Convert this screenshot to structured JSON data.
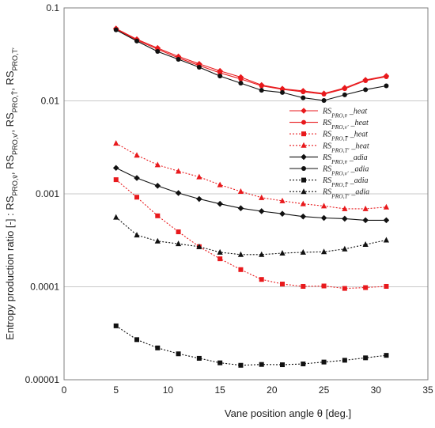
{
  "chart_data": {
    "type": "line",
    "title": "",
    "xlabel": "Vane position angle θ [deg.]",
    "ylabel": "Entropy production ratio [-] : RS_PRO,v̄, RS_PRO,v′, RS_PRO,T̄, RS_PRO,T′",
    "ylabel_parts": {
      "prefix": "Entropy production ratio [-] : ",
      "base": "RS",
      "sep": ", ",
      "subs": [
        "PRO,v̄",
        "PRO,v′",
        "PRO,T̄",
        "PRO,T′"
      ]
    },
    "xlim": [
      0,
      35
    ],
    "xticks": [
      0,
      5,
      10,
      15,
      20,
      25,
      30,
      35
    ],
    "xtick_labels": [
      "0",
      "5",
      "10",
      "15",
      "20",
      "25",
      "30",
      "35"
    ],
    "ylim": [
      1e-05,
      0.1
    ],
    "yscale": "log",
    "yticks": [
      1e-05,
      0.0001,
      0.001,
      0.01,
      0.1
    ],
    "ytick_labels": [
      "0.00001",
      "0.0001",
      "0.001",
      "0.01",
      "0.1"
    ],
    "grid": "horizontal",
    "legend_position": "right",
    "x": [
      5,
      7,
      9,
      11,
      13,
      15,
      17,
      19,
      21,
      23,
      25,
      27,
      29,
      31
    ],
    "series": [
      {
        "name": "_heat",
        "legend_base": "RS",
        "legend_sub": "PRO,v̄",
        "legend_suffix": "_heat",
        "color": "#e8191c",
        "marker": "diamond",
        "dash": "solid",
        "values": [
          0.06,
          0.046,
          0.037,
          0.03,
          0.025,
          0.021,
          0.018,
          0.0148,
          0.0135,
          0.0128,
          0.012,
          0.0138,
          0.0168,
          0.0185
        ]
      },
      {
        "name": "_heat",
        "legend_base": "RS",
        "legend_sub": "PRO,v′",
        "legend_suffix": "_heat",
        "color": "#e8191c",
        "marker": "circle",
        "dash": "solid",
        "values": [
          0.059,
          0.045,
          0.036,
          0.029,
          0.024,
          0.02,
          0.0172,
          0.0145,
          0.0133,
          0.0125,
          0.0118,
          0.0135,
          0.0165,
          0.0182
        ]
      },
      {
        "name": "_heat",
        "legend_base": "RS",
        "legend_sub": "PRO,T̄",
        "legend_suffix": "_heat",
        "color": "#e8191c",
        "marker": "square",
        "dash": "dotted",
        "values": [
          0.00142,
          0.00092,
          0.00058,
          0.00039,
          0.00027,
          0.0002,
          0.000153,
          0.00012,
          0.000107,
          0.000101,
          0.000102,
          9.6e-05,
          9.8e-05,
          0.000101
        ]
      },
      {
        "name": "_heat",
        "legend_base": "RS",
        "legend_sub": "PRO,T′",
        "legend_suffix": "_heat",
        "color": "#e8191c",
        "marker": "triangle",
        "dash": "dotted",
        "values": [
          0.0035,
          0.0026,
          0.00205,
          0.00175,
          0.00152,
          0.00125,
          0.00106,
          0.00091,
          0.00084,
          0.00078,
          0.00074,
          0.00069,
          0.00069,
          0.00072
        ]
      },
      {
        "name": "_adia",
        "legend_base": "RS",
        "legend_sub": "PRO,v̄",
        "legend_suffix": "_adia",
        "color": "#111111",
        "marker": "diamond",
        "dash": "solid",
        "values": [
          0.0019,
          0.00148,
          0.00122,
          0.00102,
          0.00088,
          0.00078,
          0.0007,
          0.00065,
          0.00061,
          0.00057,
          0.00055,
          0.00054,
          0.00052,
          0.00052
        ]
      },
      {
        "name": "_adia",
        "legend_base": "RS",
        "legend_sub": "PRO,v′",
        "legend_suffix": "_adia",
        "color": "#111111",
        "marker": "circle",
        "dash": "solid",
        "values": [
          0.058,
          0.044,
          0.034,
          0.028,
          0.023,
          0.0185,
          0.0155,
          0.013,
          0.0123,
          0.0108,
          0.0101,
          0.0116,
          0.0132,
          0.0145
        ]
      },
      {
        "name": "_adia",
        "legend_base": "RS",
        "legend_sub": "PRO,T̄",
        "legend_suffix": "_adia",
        "color": "#111111",
        "marker": "square",
        "dash": "dotted",
        "values": [
          3.8e-05,
          2.7e-05,
          2.2e-05,
          1.9e-05,
          1.7e-05,
          1.52e-05,
          1.43e-05,
          1.46e-05,
          1.45e-05,
          1.48e-05,
          1.55e-05,
          1.62e-05,
          1.72e-05,
          1.83e-05
        ]
      },
      {
        "name": "_adia",
        "legend_base": "RS",
        "legend_sub": "PRO,T′",
        "legend_suffix": "_adia",
        "color": "#111111",
        "marker": "triangle",
        "dash": "dotted",
        "values": [
          0.00056,
          0.00036,
          0.00031,
          0.00029,
          0.00027,
          0.000235,
          0.000222,
          0.000222,
          0.00023,
          0.000235,
          0.000238,
          0.000255,
          0.000285,
          0.000318
        ]
      }
    ]
  }
}
